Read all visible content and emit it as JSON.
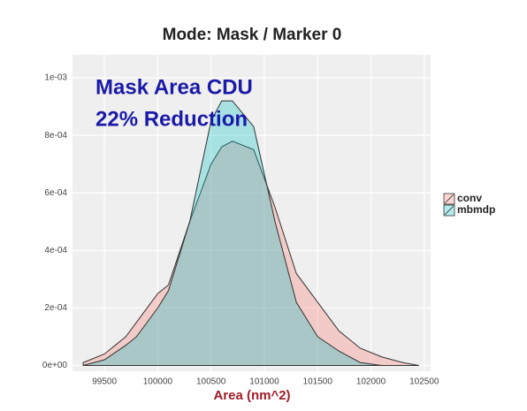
{
  "chart_data": {
    "type": "area",
    "title": "Mode: Mask / Marker 0",
    "x_label": "Area (nm^2)",
    "annotations": [
      "Mask Area CDU",
      "22% Reduction"
    ],
    "x": [
      99300,
      99500,
      99700,
      99800,
      100000,
      100100,
      100300,
      100500,
      100600,
      100700,
      100900,
      101100,
      101300,
      101500,
      101700,
      101900,
      102100,
      102300,
      102450
    ],
    "series": [
      {
        "name": "conv",
        "color": "#f8766d",
        "values": [
          1e-05,
          4e-05,
          0.0001,
          0.00015,
          0.00025,
          0.00028,
          0.0005,
          0.0007,
          0.00076,
          0.00078,
          0.00075,
          0.00055,
          0.00032,
          0.00022,
          0.00012,
          6e-05,
          3e-05,
          1e-05,
          0
        ]
      },
      {
        "name": "mbmdp",
        "color": "#00bfc4",
        "values": [
          0,
          2e-05,
          7e-05,
          0.0001,
          0.0002,
          0.00026,
          0.0005,
          0.00085,
          0.00092,
          0.00092,
          0.00083,
          0.0005,
          0.00022,
          0.0001,
          5e-05,
          1e-05,
          0,
          0,
          0
        ]
      }
    ],
    "xlim": [
      99200,
      102560
    ],
    "xticks": [
      99500,
      100000,
      100500,
      101000,
      101500,
      102000,
      102500
    ],
    "ylim": [
      -2e-05,
      0.00108
    ],
    "yticks": [
      {
        "value": 0,
        "label": "0e+00"
      },
      {
        "value": 0.0002,
        "label": "2e-04"
      },
      {
        "value": 0.0004,
        "label": "4e-04"
      },
      {
        "value": 0.0006,
        "label": "6e-04"
      },
      {
        "value": 0.0008,
        "label": "8e-04"
      },
      {
        "value": 0.001,
        "label": "1e-03"
      }
    ],
    "grid": true,
    "legend": "right"
  }
}
